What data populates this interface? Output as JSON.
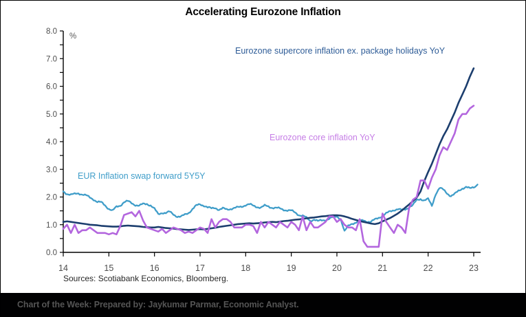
{
  "chart_data": {
    "type": "line",
    "title": "Accelerating Eurozone Inflation",
    "x_axis": {
      "min": 2014,
      "max": 2023,
      "tick_labels": [
        "14",
        "15",
        "16",
        "17",
        "18",
        "19",
        "20",
        "21",
        "22",
        "23"
      ]
    },
    "y_axis": {
      "min": 0,
      "max": 8,
      "major_step": 1,
      "minor_step": 0.5,
      "unit": "%",
      "tick_label_format": "one-decimal"
    },
    "legend_position": "inline-annotations",
    "grid": false,
    "series": [
      {
        "name": "Eurozone supercore inflation ex. package holidays YoY",
        "color": "#1c3e6e",
        "label_color": "#2e5c97",
        "x_start": 2014.0,
        "x_step": 0.08333,
        "values": [
          1.1,
          1.12,
          1.1,
          1.08,
          1.06,
          1.04,
          1.02,
          1.0,
          0.99,
          0.98,
          0.96,
          0.95,
          0.94,
          0.93,
          0.93,
          0.94,
          0.96,
          0.97,
          0.96,
          0.95,
          0.94,
          0.92,
          0.91,
          0.9,
          0.9,
          0.92,
          0.9,
          0.88,
          0.87,
          0.86,
          0.84,
          0.83,
          0.82,
          0.81,
          0.82,
          0.83,
          0.84,
          0.83,
          0.85,
          0.87,
          0.89,
          0.92,
          0.94,
          0.96,
          0.98,
          1.0,
          1.02,
          1.03,
          1.04,
          1.05,
          1.04,
          1.05,
          1.06,
          1.08,
          1.09,
          1.1,
          1.09,
          1.11,
          1.13,
          1.14,
          1.16,
          1.18,
          1.19,
          1.21,
          1.23,
          1.25,
          1.26,
          1.28,
          1.3,
          1.31,
          1.33,
          1.34,
          1.34,
          1.33,
          1.3,
          1.26,
          1.21,
          1.17,
          1.13,
          1.1,
          1.07,
          1.04,
          1.02,
          1.05,
          1.12,
          1.18,
          1.24,
          1.32,
          1.4,
          1.5,
          1.62,
          1.73,
          1.85,
          1.98,
          2.2,
          2.58,
          2.9,
          3.2,
          3.55,
          3.9,
          4.2,
          4.45,
          4.75,
          5.05,
          5.4,
          5.7,
          6.0,
          6.35,
          6.65
        ]
      },
      {
        "name": "Eurozone core inflation YoY",
        "color": "#b366de",
        "label_color": "#c67ee6",
        "x_start": 2014.0,
        "x_step": 0.08333,
        "values": [
          0.85,
          1.0,
          0.7,
          1.0,
          0.7,
          0.8,
          0.8,
          0.9,
          0.8,
          0.7,
          0.7,
          0.7,
          0.65,
          0.7,
          0.65,
          0.95,
          1.35,
          1.4,
          1.45,
          1.3,
          1.5,
          1.15,
          0.9,
          0.85,
          0.8,
          0.75,
          0.85,
          0.7,
          0.8,
          0.9,
          0.85,
          0.8,
          0.7,
          0.75,
          0.7,
          0.8,
          0.9,
          0.85,
          0.7,
          1.2,
          0.9,
          1.1,
          1.2,
          1.2,
          1.1,
          0.9,
          0.9,
          0.9,
          1.0,
          1.0,
          0.95,
          0.7,
          1.1,
          0.9,
          1.1,
          1.0,
          0.9,
          1.1,
          1.0,
          0.9,
          1.1,
          1.0,
          0.8,
          1.3,
          0.8,
          1.1,
          0.9,
          0.9,
          1.0,
          1.1,
          1.3,
          1.3,
          1.1,
          1.2,
          1.0,
          0.9,
          0.9,
          0.8,
          1.2,
          0.4,
          0.2,
          0.2,
          0.2,
          0.2,
          1.4,
          1.1,
          0.9,
          0.7,
          1.0,
          0.9,
          0.7,
          1.6,
          1.9,
          2.0,
          2.6,
          2.6,
          2.3,
          2.7,
          3.0,
          3.5,
          3.8,
          3.7,
          4.0,
          4.3,
          4.8,
          5.0,
          5.0,
          5.2,
          5.3
        ]
      },
      {
        "name": "EUR Inflation swap forward 5Y5Y",
        "color": "#3f9dc9",
        "label_color": "#3f9dc9",
        "x_start": 2014.0,
        "x_step": 0.08333,
        "values": [
          2.2,
          2.12,
          2.08,
          2.1,
          2.14,
          2.1,
          2.05,
          1.98,
          1.92,
          1.82,
          1.8,
          1.7,
          1.58,
          1.5,
          1.64,
          1.7,
          1.82,
          1.84,
          1.78,
          1.72,
          1.68,
          1.74,
          1.76,
          1.7,
          1.56,
          1.38,
          1.44,
          1.42,
          1.46,
          1.38,
          1.3,
          1.28,
          1.36,
          1.44,
          1.56,
          1.68,
          1.74,
          1.7,
          1.62,
          1.58,
          1.62,
          1.54,
          1.58,
          1.55,
          1.58,
          1.6,
          1.62,
          1.66,
          1.72,
          1.73,
          1.68,
          1.65,
          1.62,
          1.68,
          1.66,
          1.62,
          1.6,
          1.58,
          1.55,
          1.52,
          1.5,
          1.44,
          1.36,
          1.32,
          1.24,
          1.14,
          1.2,
          1.12,
          1.15,
          1.18,
          1.22,
          1.26,
          1.3,
          1.22,
          0.75,
          0.95,
          1.05,
          1.08,
          1.12,
          1.16,
          1.12,
          1.1,
          1.18,
          1.26,
          1.32,
          1.4,
          1.48,
          1.54,
          1.56,
          1.52,
          1.56,
          1.64,
          1.7,
          1.88,
          1.94,
          1.88,
          1.92,
          1.68,
          2.12,
          2.32,
          2.26,
          2.14,
          2.04,
          2.1,
          2.22,
          2.32,
          2.36,
          2.3,
          2.36,
          2.45
        ]
      }
    ]
  },
  "sources": "Sources: Scotiabank Economics, Bloomberg.",
  "footer": {
    "text": "Chart of the Week: Prepared by: Jaykumar Parmar, Economic Analyst."
  }
}
